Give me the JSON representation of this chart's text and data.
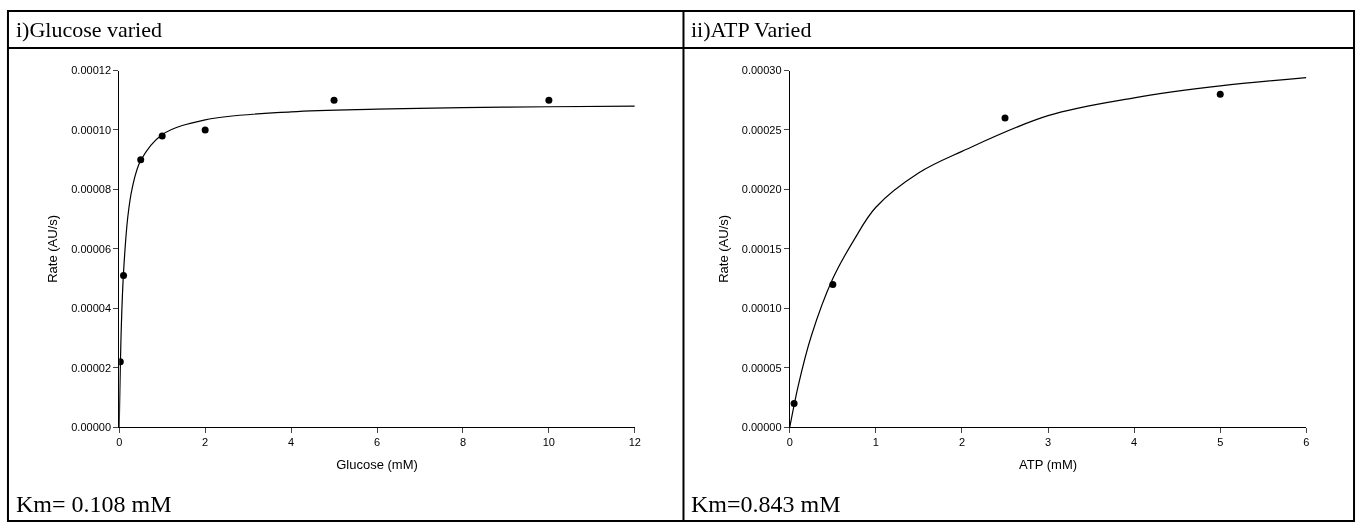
{
  "chart_data": [
    {
      "type": "scatter",
      "title": "i)Glucose varied",
      "xlabel": "Glucose (mM)",
      "ylabel": "Rate (AU/s)",
      "xlim": [
        0,
        12
      ],
      "xticks": [
        0,
        2,
        4,
        6,
        8,
        10,
        12
      ],
      "ylim": [
        0,
        0.00012
      ],
      "yticks": [
        {
          "value": 0,
          "label": "0.00000"
        },
        {
          "value": 2e-05,
          "label": "0.00002"
        },
        {
          "value": 4e-05,
          "label": "0.00004"
        },
        {
          "value": 6e-05,
          "label": "0.00006"
        },
        {
          "value": 8e-05,
          "label": "0.00008"
        },
        {
          "value": 0.0001,
          "label": "0.00010"
        },
        {
          "value": 0.00012,
          "label": "0.00012"
        }
      ],
      "marker": "circle",
      "annotations": [
        "Km= 0.108 mM"
      ],
      "series": [
        {
          "color": "#000000",
          "x": [
            0.025,
            0.1,
            0.5,
            1,
            2,
            5,
            10
          ],
          "values": [
            2.2e-05,
            5.1e-05,
            9e-05,
            9.8e-05,
            0.0001,
            0.00011,
            0.00011
          ]
        },
        {
          "type": "line",
          "marker": "none",
          "color": "#000000",
          "line_style": "solid",
          "x": [
            0,
            0.05,
            0.1,
            0.2,
            0.3,
            0.5,
            1,
            2,
            4,
            6,
            8,
            10,
            12
          ],
          "values": [
            0,
            3.45e-05,
            5.2e-05,
            7.08e-05,
            8.03e-05,
            8.97e-05,
            9.84e-05,
            0.0001034,
            0.0001061,
            0.000107,
            0.0001075,
            0.0001078,
            0.000108
          ]
        }
      ]
    },
    {
      "type": "scatter",
      "title": "ii)ATP Varied",
      "xlabel": "ATP (mM)",
      "ylabel": "Rate (AU/s)",
      "xlim": [
        0,
        6
      ],
      "xticks": [
        0,
        1,
        2,
        3,
        4,
        5,
        6
      ],
      "ylim": [
        0,
        0.0003
      ],
      "yticks": [
        {
          "value": 0,
          "label": "0.00000"
        },
        {
          "value": 5e-05,
          "label": "0.00005"
        },
        {
          "value": 0.0001,
          "label": "0.00010"
        },
        {
          "value": 0.00015,
          "label": "0.00015"
        },
        {
          "value": 0.0002,
          "label": "0.00020"
        },
        {
          "value": 0.00025,
          "label": "0.00025"
        },
        {
          "value": 0.0003,
          "label": "0.00030"
        }
      ],
      "marker": "circle",
      "annotations": [
        "Km=0.843 mM"
      ],
      "series": [
        {
          "color": "#000000",
          "x": [
            0.05,
            0.5,
            2.5,
            5
          ],
          "values": [
            2e-05,
            0.00012,
            0.00026,
            0.00028
          ]
        },
        {
          "type": "line",
          "marker": "none",
          "color": "#000000",
          "line_style": "solid",
          "x": [
            0,
            0.1,
            0.25,
            0.5,
            0.75,
            1,
            1.5,
            2,
            3,
            4,
            5,
            6
          ],
          "values": [
            0,
            3.55e-05,
            7.67e-05,
            0.000125,
            0.000158,
            0.000185,
            0.000214,
            0.000232,
            0.000262,
            0.000277,
            0.000287,
            0.000294
          ]
        }
      ]
    }
  ]
}
